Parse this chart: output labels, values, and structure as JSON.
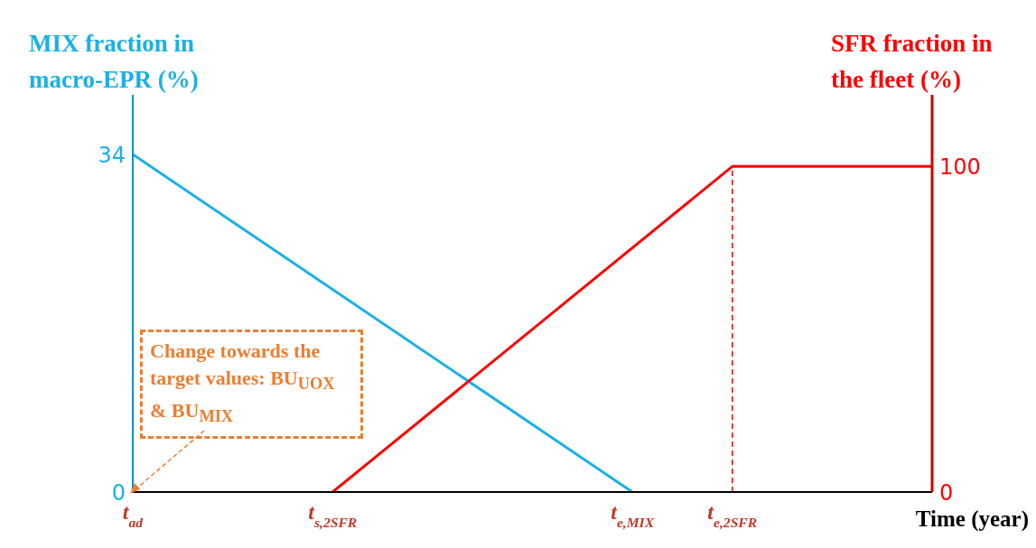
{
  "chart_data": {
    "type": "line",
    "ylabel": "MIX fraction in macro-EPR (%)",
    "y2label": "SFR fraction in the fleet (%)",
    "xlabel": "Time (year)",
    "categories": [
      "t$_{ad}$",
      null,
      "t$_{s,2SFR}$",
      null,
      null,
      "t$_{e,MIX}$",
      "t$_{e,2SFR}$",
      null,
      null
    ],
    "series": [
      {
        "color": "#1ab0e8",
        "values": [
          34,
          null,
          null,
          null,
          null,
          0,
          null,
          null,
          null
        ]
      },
      {
        "color": "#ff0000",
        "axis": "y2",
        "values": [
          null,
          null,
          0,
          null,
          null,
          null,
          100,
          null,
          100
        ]
      }
    ],
    "ylim": [
      0,
      40
    ],
    "yticks": [
      0,
      34
    ],
    "y2lim": [
      0,
      122
    ],
    "y2ticks": [
      0,
      100
    ],
    "ref_lines": [
      {
        "axis": "x",
        "value": "t$_{e,2SFR}$",
        "color": "#ff0000",
        "line_style": "dashed"
      }
    ],
    "annotations": [
      "Change towards the target values: BU$_{UOX}$ & BU$_{MIX}$"
    ],
    "grid": false,
    "legend": false,
    "marker": "none",
    "line_style": "solid"
  }
}
